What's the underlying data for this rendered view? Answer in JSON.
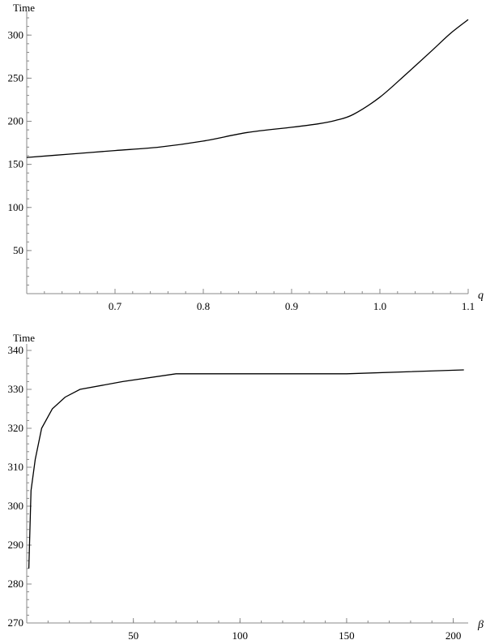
{
  "chart_data": [
    {
      "type": "line",
      "ylabel": "Time",
      "xlabel": "q",
      "xlim": [
        0.6,
        1.1
      ],
      "ylim": [
        0,
        320
      ],
      "x_major_ticks": [
        0.7,
        0.8,
        0.9,
        1.0,
        1.1
      ],
      "x_tick_labels": [
        "0.7",
        "0.8",
        "0.9",
        "1.0",
        "1.1"
      ],
      "y_major_ticks": [
        50,
        100,
        150,
        200,
        250,
        300
      ],
      "y_tick_labels": [
        "50",
        "100",
        "150",
        "200",
        "250",
        "300"
      ],
      "grid": false,
      "series": [
        {
          "x": [
            0.6,
            0.65,
            0.7,
            0.75,
            0.8,
            0.85,
            0.9,
            0.93,
            0.95,
            0.97,
            1.0,
            1.03,
            1.06,
            1.08,
            1.1
          ],
          "y": [
            158,
            162,
            166,
            170,
            177,
            187,
            193,
            197,
            201,
            208,
            228,
            255,
            283,
            302,
            318
          ]
        }
      ]
    },
    {
      "type": "line",
      "ylabel": "Time",
      "xlabel": "β",
      "xlim": [
        0,
        207
      ],
      "ylim": [
        270,
        340
      ],
      "x_major_ticks": [
        50,
        100,
        150,
        200
      ],
      "x_tick_labels": [
        "50",
        "100",
        "150",
        "200"
      ],
      "y_major_ticks": [
        270,
        280,
        290,
        300,
        310,
        320,
        330,
        340
      ],
      "y_tick_labels": [
        "270",
        "280",
        "290",
        "300",
        "310",
        "320",
        "330",
        "340"
      ],
      "grid": false,
      "series": [
        {
          "x": [
            1,
            2,
            4,
            7,
            12,
            18,
            25,
            45,
            70,
            150,
            205
          ],
          "y": [
            284,
            304,
            312,
            320,
            325,
            328,
            330,
            332,
            334,
            334,
            335
          ]
        }
      ]
    }
  ]
}
